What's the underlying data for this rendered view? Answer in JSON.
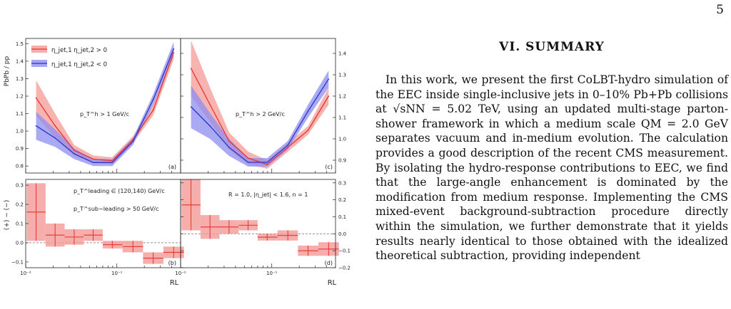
{
  "page": {
    "number": "5"
  },
  "section": {
    "title": "VI.   SUMMARY",
    "paragraph": "In this work, we present the first CoLBT-hydro simulation of the EEC inside single-inclusive jets in 0–10% Pb+Pb collisions at √sNN = 5.02 TeV, using an updated multi-stage parton-shower framework in which a medium scale QM = 2.0 GeV separates vacuum and in-medium evolution. The calculation provides a good description of the recent CMS measurement. By isolating the hydro-response contributions to EEC, we find that the large-angle enhancement is dominated by the modification from medium response. Implementing the CMS mixed-event background-subtraction procedure directly within the simulation, we further demonstrate that it yields results nearly identical to those obtained with the idealized theoretical subtraction, providing independent"
  },
  "figure": {
    "colors": {
      "positive": "#e8332e",
      "positive_band": "#f39a96",
      "negative": "#2c35c8",
      "negative_band": "#8e8ef0"
    },
    "labels": {
      "ylabel_top": "PbPb / pp",
      "ylabel_bottom": "(+) − (−)",
      "xlabel": "RL",
      "legend_pos": "η_jet,1 η_jet,2 > 0",
      "legend_neg": "η_jet,1 η_jet,2 < 0",
      "panel_a": "(a)",
      "panel_b": "(b)",
      "panel_c": "(c)",
      "panel_d": "(d)",
      "pt_cut_a": "p_T^h > 1 GeV/c",
      "pt_cut_c": "p_T^h > 2 GeV/c",
      "leading": "p_T^leading ∈ (120,140) GeV/c",
      "subleading": "p_T^sub−leading > 50 GeV/c",
      "selection": "R = 1.0, |η_jet| < 1.6,  n = 1"
    },
    "ticks": {
      "x": [
        "10⁻²",
        "10⁻¹"
      ],
      "top_left_y": [
        "0.8",
        "0.9",
        "1.0",
        "1.1",
        "1.2",
        "1.3",
        "1.4",
        "1.5"
      ],
      "top_right_y": [
        "0.9",
        "1.0",
        "1.1",
        "1.2",
        "1.3",
        "1.4"
      ],
      "bottom_left_y": [
        "−0.1",
        "0.0",
        "0.1",
        "0.2",
        "0.3"
      ],
      "bottom_right_y": [
        "−0.2",
        "−0.1",
        "0.0",
        "0.1",
        "0.2",
        "0.3"
      ]
    }
  },
  "chart_data": [
    {
      "type": "line",
      "panel": "(a)",
      "x": [
        0.013,
        0.021,
        0.034,
        0.055,
        0.089,
        0.15,
        0.25,
        0.42
      ],
      "xlim": [
        0.01,
        0.5
      ],
      "xscale": "log",
      "ylim": [
        0.76,
        1.53
      ],
      "ylabel": "PbPb / pp",
      "series": [
        {
          "name": "η_jet,1 η_jet,2 > 0",
          "values": [
            1.19,
            1.03,
            0.89,
            0.84,
            0.83,
            0.95,
            1.12,
            1.45
          ],
          "band": [
            [
              1.09,
              1.29
            ],
            [
              0.96,
              1.1
            ],
            [
              0.86,
              0.92
            ],
            [
              0.82,
              0.86
            ],
            [
              0.81,
              0.85
            ],
            [
              0.93,
              0.97
            ],
            [
              1.09,
              1.15
            ],
            [
              1.41,
              1.49
            ]
          ]
        },
        {
          "name": "η_jet,1 η_jet,2 < 0",
          "values": [
            1.03,
            0.96,
            0.87,
            0.82,
            0.82,
            0.94,
            1.18,
            1.47
          ],
          "band": [
            [
              0.95,
              1.11
            ],
            [
              0.91,
              1.01
            ],
            [
              0.84,
              0.9
            ],
            [
              0.8,
              0.84
            ],
            [
              0.8,
              0.84
            ],
            [
              0.92,
              0.96
            ],
            [
              1.15,
              1.21
            ],
            [
              1.43,
              1.51
            ]
          ]
        }
      ]
    },
    {
      "type": "line",
      "panel": "(c)",
      "x": [
        0.013,
        0.021,
        0.034,
        0.055,
        0.089,
        0.15,
        0.25,
        0.42
      ],
      "xlim": [
        0.01,
        0.5
      ],
      "xscale": "log",
      "ylim": [
        0.84,
        1.47
      ],
      "series": [
        {
          "name": "η_jet,1 η_jet,2 > 0",
          "values": [
            1.33,
            1.16,
            0.99,
            0.91,
            0.88,
            0.96,
            1.04,
            1.2
          ],
          "band": [
            [
              1.2,
              1.46
            ],
            [
              1.08,
              1.24
            ],
            [
              0.95,
              1.03
            ],
            [
              0.88,
              0.94
            ],
            [
              0.86,
              0.9
            ],
            [
              0.94,
              0.98
            ],
            [
              1.02,
              1.06
            ],
            [
              1.16,
              1.24
            ]
          ]
        },
        {
          "name": "η_jet,1 η_jet,2 < 0",
          "values": [
            1.15,
            1.06,
            0.96,
            0.89,
            0.89,
            0.97,
            1.13,
            1.28
          ],
          "band": [
            [
              1.05,
              1.25
            ],
            [
              1.0,
              1.12
            ],
            [
              0.92,
              1.0
            ],
            [
              0.87,
              0.91
            ],
            [
              0.87,
              0.91
            ],
            [
              0.95,
              0.99
            ],
            [
              1.1,
              1.16
            ],
            [
              1.24,
              1.32
            ]
          ]
        }
      ]
    },
    {
      "type": "bar",
      "panel": "(b)",
      "x": [
        0.013,
        0.021,
        0.034,
        0.055,
        0.089,
        0.15,
        0.25,
        0.42
      ],
      "xlim": [
        0.01,
        0.5
      ],
      "xscale": "log",
      "ylim": [
        -0.13,
        0.33
      ],
      "ylabel": "(+) − (−)",
      "xlabel": "RL",
      "values": [
        0.16,
        0.04,
        0.03,
        0.04,
        -0.01,
        -0.02,
        -0.08,
        -0.05
      ],
      "errors": [
        0.15,
        0.06,
        0.04,
        0.03,
        0.02,
        0.03,
        0.03,
        0.03
      ]
    },
    {
      "type": "bar",
      "panel": "(d)",
      "x": [
        0.013,
        0.021,
        0.034,
        0.055,
        0.089,
        0.15,
        0.25,
        0.42
      ],
      "xlim": [
        0.01,
        0.5
      ],
      "xscale": "log",
      "ylim": [
        -0.2,
        0.32
      ],
      "xlabel": "RL",
      "values": [
        0.17,
        0.04,
        0.04,
        0.05,
        -0.02,
        -0.01,
        -0.1,
        -0.09
      ],
      "errors": [
        0.15,
        0.07,
        0.04,
        0.03,
        0.02,
        0.03,
        0.03,
        0.04
      ]
    }
  ]
}
